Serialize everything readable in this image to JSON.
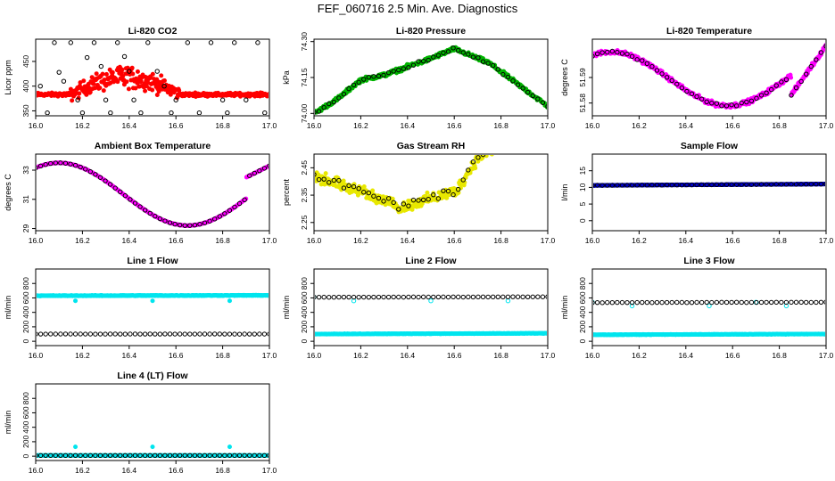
{
  "page": {
    "title": "FEF_060716  2.5 Min. Ave. Diagnostics"
  },
  "chart_data": [
    {
      "type": "scatter",
      "title": "Li-820 CO2",
      "ylabel": "Licor ppm",
      "xlim": [
        16.0,
        17.0
      ],
      "ylim": [
        340,
        495
      ],
      "xticks": [
        "16.0",
        "16.2",
        "16.4",
        "16.6",
        "16.8",
        "17.0"
      ],
      "yticks": [
        "350",
        "400",
        "450"
      ],
      "series": [
        {
          "color": "#ff0000",
          "filled": true,
          "shape": {
            "kind": "co2",
            "base": 383,
            "amp": 50,
            "x0": 16.15,
            "x1": 16.62,
            "noise": 14
          }
        },
        {
          "color": "#000000",
          "filled": false,
          "points": [
            [
              16.02,
              400
            ],
            [
              16.05,
              346
            ],
            [
              16.08,
              488
            ],
            [
              16.1,
              428
            ],
            [
              16.12,
              410
            ],
            [
              16.15,
              488
            ],
            [
              16.18,
              372
            ],
            [
              16.2,
              346
            ],
            [
              16.22,
              458
            ],
            [
              16.25,
              488
            ],
            [
              16.28,
              440
            ],
            [
              16.3,
              372
            ],
            [
              16.32,
              346
            ],
            [
              16.35,
              488
            ],
            [
              16.38,
              460
            ],
            [
              16.4,
              430
            ],
            [
              16.42,
              372
            ],
            [
              16.45,
              346
            ],
            [
              16.48,
              488
            ],
            [
              16.52,
              430
            ],
            [
              16.55,
              400
            ],
            [
              16.58,
              346
            ],
            [
              16.6,
              372
            ],
            [
              16.65,
              488
            ],
            [
              16.7,
              346
            ],
            [
              16.75,
              488
            ],
            [
              16.8,
              372
            ],
            [
              16.82,
              346
            ],
            [
              16.85,
              488
            ],
            [
              16.9,
              372
            ],
            [
              16.95,
              488
            ],
            [
              16.98,
              346
            ]
          ]
        }
      ]
    },
    {
      "type": "scatter",
      "title": "Li-820 Pressure",
      "ylabel": "kPa",
      "xlim": [
        16.0,
        17.0
      ],
      "ylim": [
        73.99,
        74.31
      ],
      "xticks": [
        "16.0",
        "16.2",
        "16.4",
        "16.6",
        "16.8",
        "17.0"
      ],
      "yticks": [
        "74.00",
        "74.15",
        "74.30"
      ],
      "series": [
        {
          "color": "#00b400",
          "filled": true,
          "shape": {
            "kind": "pressure",
            "noise": 0.012
          }
        },
        {
          "color": "#000000",
          "filled": false,
          "shape": {
            "kind": "pressure",
            "sparse": true,
            "noise": 0.008
          }
        }
      ]
    },
    {
      "type": "scatter",
      "title": "Li-820 Temperature",
      "ylabel": "degrees C",
      "xlim": [
        16.0,
        17.0
      ],
      "ylim": [
        51.575,
        51.605
      ],
      "xticks": [
        "16.0",
        "16.2",
        "16.4",
        "16.6",
        "16.8",
        "17.0"
      ],
      "yticks": [
        "51.58",
        "51.59"
      ],
      "series": [
        {
          "color": "#ff00ff",
          "filled": true,
          "shape": {
            "kind": "ltemp",
            "noise": 0.0012
          }
        },
        {
          "color": "#000000",
          "filled": false,
          "shape": {
            "kind": "ltemp",
            "sparse": true,
            "noise": 0.0006
          }
        }
      ]
    },
    {
      "type": "scatter",
      "title": "Ambient Box Temperature",
      "ylabel": "degrees C",
      "xlim": [
        16.0,
        17.0
      ],
      "ylim": [
        28.85,
        34.1
      ],
      "xticks": [
        "16.0",
        "16.2",
        "16.4",
        "16.6",
        "16.8",
        "17.0"
      ],
      "yticks": [
        "29",
        "31",
        "33"
      ],
      "series": [
        {
          "color": "#ff00ff",
          "filled": true,
          "shape": {
            "kind": "abtemp",
            "noise": 0.02
          }
        },
        {
          "color": "#000000",
          "filled": false,
          "shape": {
            "kind": "abtemp",
            "sparse": true,
            "noise": 0.0
          }
        }
      ]
    },
    {
      "type": "scatter",
      "title": "Gas Stream RH",
      "ylabel": "percent",
      "xlim": [
        16.0,
        17.0
      ],
      "ylim": [
        2.22,
        2.5
      ],
      "xticks": [
        "16.0",
        "16.2",
        "16.4",
        "16.6",
        "16.8",
        "17.0"
      ],
      "yticks": [
        "2.25",
        "2.35",
        "2.45"
      ],
      "series": [
        {
          "color": "#e8e800",
          "filled": true,
          "shape": {
            "kind": "rh",
            "noise": 0.03
          }
        },
        {
          "color": "#000000",
          "filled": false,
          "shape": {
            "kind": "rh",
            "sparse": true,
            "noise": 0.02
          }
        }
      ]
    },
    {
      "type": "scatter",
      "title": "Sample Flow",
      "ylabel": "l/min",
      "xlim": [
        16.0,
        17.0
      ],
      "ylim": [
        -3,
        20
      ],
      "xticks": [
        "16.0",
        "16.2",
        "16.4",
        "16.6",
        "16.8",
        "17.0"
      ],
      "yticks": [
        "0",
        "5",
        "10",
        "15"
      ],
      "series": [
        {
          "color": "#0000cc",
          "filled": true,
          "shape": {
            "kind": "flat",
            "y0": 10.6,
            "y1": 11.0,
            "noise": 0.08
          }
        },
        {
          "color": "#000000",
          "filled": false,
          "shape": {
            "kind": "flat",
            "y0": 10.6,
            "y1": 11.0,
            "sparse": true,
            "noise": 0.05
          }
        }
      ]
    },
    {
      "type": "scatter",
      "title": "Line 1 Flow",
      "ylabel": "ml/min",
      "xlim": [
        16.0,
        17.0
      ],
      "ylim": [
        -60,
        1000
      ],
      "xticks": [
        "16.0",
        "16.2",
        "16.4",
        "16.6",
        "16.8",
        "17.0"
      ],
      "yticks": [
        "0",
        "200",
        "400",
        "600",
        "800"
      ],
      "series": [
        {
          "color": "#00e5ee",
          "filled": true,
          "shape": {
            "kind": "flat",
            "y0": 630,
            "y1": 635,
            "noise": 6,
            "dips": [
              [
                16.17,
                560
              ],
              [
                16.5,
                560
              ],
              [
                16.83,
                560
              ]
            ]
          }
        },
        {
          "color": "#000000",
          "filled": false,
          "shape": {
            "kind": "flat",
            "y0": 100,
            "y1": 100,
            "sparse": true,
            "noise": 2
          }
        }
      ]
    },
    {
      "type": "scatter",
      "title": "Line 2 Flow",
      "ylabel": "ml/min",
      "xlim": [
        16.0,
        17.0
      ],
      "ylim": [
        -60,
        1000
      ],
      "xticks": [
        "16.0",
        "16.2",
        "16.4",
        "16.6",
        "16.8",
        "17.0"
      ],
      "yticks": [
        "0",
        "200",
        "400",
        "600",
        "800"
      ],
      "series": [
        {
          "color": "#00e5ee",
          "filled": true,
          "shape": {
            "kind": "flat",
            "y0": 100,
            "y1": 110,
            "noise": 4
          }
        },
        {
          "color": "#00e5ee",
          "filled": false,
          "points": [
            [
              16.0,
              610
            ],
            [
              16.17,
              560
            ],
            [
              16.5,
              560
            ],
            [
              16.83,
              560
            ]
          ]
        },
        {
          "color": "#000000",
          "filled": false,
          "shape": {
            "kind": "flat",
            "y0": 610,
            "y1": 615,
            "sparse": true,
            "noise": 3
          }
        }
      ]
    },
    {
      "type": "scatter",
      "title": "Line 3 Flow",
      "ylabel": "ml/min",
      "xlim": [
        16.0,
        17.0
      ],
      "ylim": [
        -60,
        1000
      ],
      "xticks": [
        "16.0",
        "16.2",
        "16.4",
        "16.6",
        "16.8",
        "17.0"
      ],
      "yticks": [
        "0",
        "200",
        "400",
        "600",
        "800"
      ],
      "series": [
        {
          "color": "#00e5ee",
          "filled": true,
          "shape": {
            "kind": "flat",
            "y0": 90,
            "y1": 100,
            "noise": 4
          }
        },
        {
          "color": "#00e5ee",
          "filled": false,
          "points": [
            [
              16.0,
              540
            ],
            [
              16.17,
              490
            ],
            [
              16.5,
              490
            ],
            [
              16.7,
              540
            ],
            [
              16.83,
              490
            ]
          ]
        },
        {
          "color": "#000000",
          "filled": false,
          "shape": {
            "kind": "flat",
            "y0": 535,
            "y1": 540,
            "sparse": true,
            "noise": 3
          }
        }
      ]
    },
    {
      "type": "scatter",
      "title": "Line 4 (LT) Flow",
      "ylabel": "ml/min",
      "xlim": [
        16.0,
        17.0
      ],
      "ylim": [
        -60,
        1000
      ],
      "xticks": [
        "16.0",
        "16.2",
        "16.4",
        "16.6",
        "16.8",
        "17.0"
      ],
      "yticks": [
        "0",
        "200",
        "400",
        "600",
        "800"
      ],
      "series": [
        {
          "color": "#00e5ee",
          "filled": true,
          "shape": {
            "kind": "flat",
            "y0": 10,
            "y1": 10,
            "noise": 2,
            "dips": [
              [
                16.17,
                130
              ],
              [
                16.5,
                130
              ],
              [
                16.83,
                130
              ]
            ]
          }
        },
        {
          "color": "#000000",
          "filled": false,
          "shape": {
            "kind": "flat",
            "y0": 10,
            "y1": 10,
            "sparse": true,
            "noise": 1
          }
        }
      ]
    }
  ]
}
